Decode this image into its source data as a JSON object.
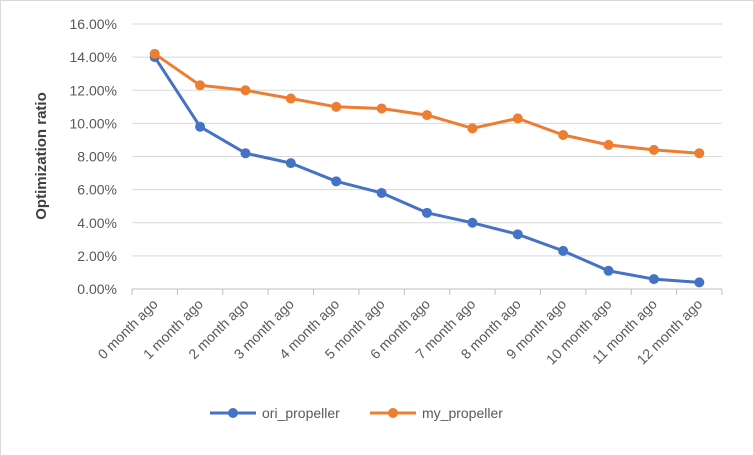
{
  "chart_data": {
    "type": "line",
    "title": "",
    "xlabel": "",
    "ylabel": "Optimization ratio",
    "ylim": [
      0,
      0.16
    ],
    "y_tick_format": "percent_2dp",
    "y_ticks": [
      "0.00%",
      "2.00%",
      "4.00%",
      "6.00%",
      "8.00%",
      "10.00%",
      "12.00%",
      "14.00%",
      "16.00%"
    ],
    "grid": "horizontal",
    "legend": "bottom",
    "categories": [
      "0 month ago",
      "1 month ago",
      "2 month ago",
      "3 month ago",
      "4 month ago",
      "5 month ago",
      "6 month ago",
      "7 month ago",
      "8 month ago",
      "9 month ago",
      "10 month ago",
      "11 month ago",
      "12 month ago"
    ],
    "series": [
      {
        "name": "ori_propeller",
        "color": "#4472c4",
        "values": [
          0.14,
          0.098,
          0.082,
          0.076,
          0.065,
          0.058,
          0.046,
          0.04,
          0.033,
          0.023,
          0.011,
          0.006,
          0.004
        ]
      },
      {
        "name": "my_propeller",
        "color": "#ed7d31",
        "values": [
          0.142,
          0.123,
          0.12,
          0.115,
          0.11,
          0.109,
          0.105,
          0.097,
          0.103,
          0.093,
          0.087,
          0.084,
          0.082
        ]
      }
    ]
  }
}
